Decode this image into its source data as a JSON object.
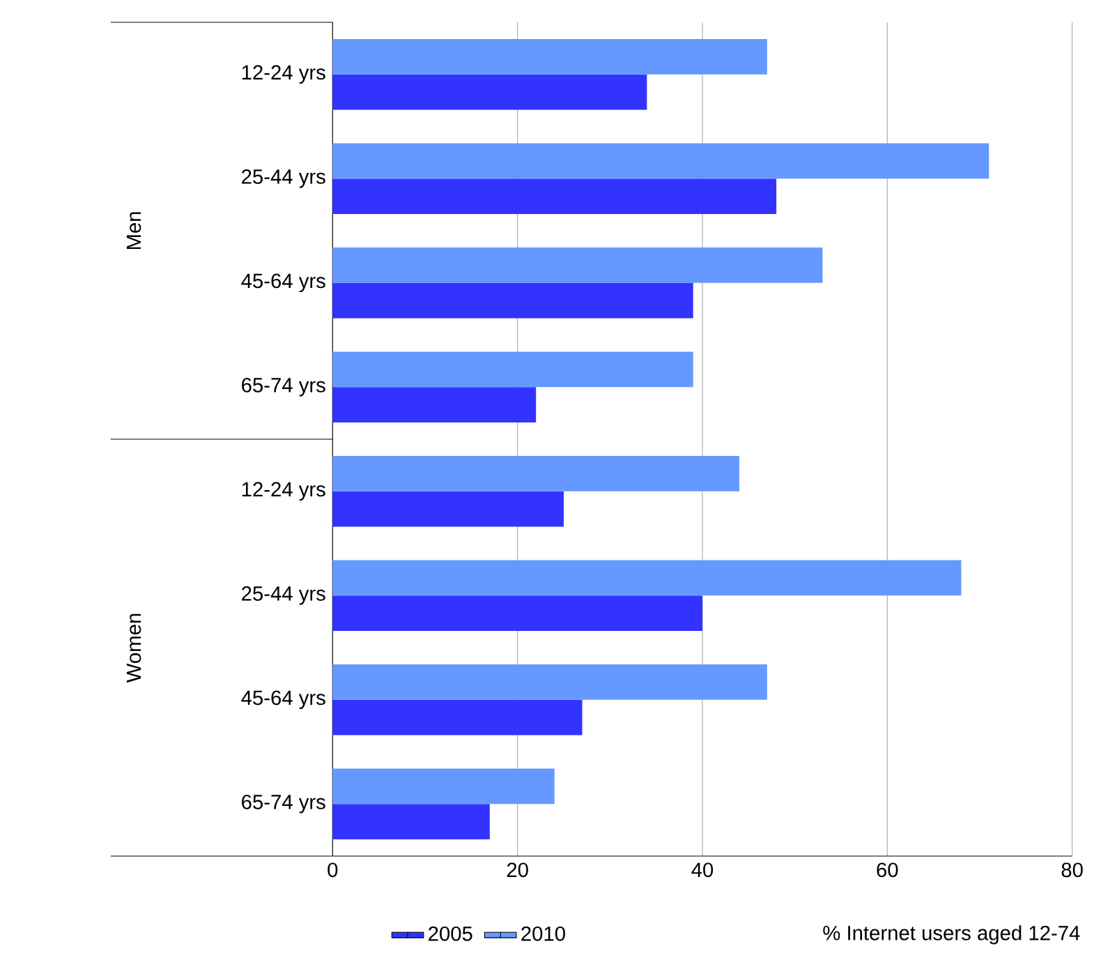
{
  "chart_data": {
    "type": "bar",
    "orientation": "horizontal",
    "categories": [
      "12-24 yrs",
      "25-44 yrs",
      "45-64 yrs",
      "65-74 yrs",
      "12-24 yrs",
      "25-44 yrs",
      "45-64 yrs",
      "65-74 yrs"
    ],
    "series": [
      {
        "name": "2005",
        "color": "#3333ff",
        "values": [
          34,
          48,
          39,
          22,
          25,
          40,
          27,
          17
        ]
      },
      {
        "name": "2010",
        "color": "#6699ff",
        "values": [
          47,
          71,
          53,
          39,
          44,
          68,
          47,
          24
        ]
      }
    ],
    "xlabel": "% Internet users aged 12-74",
    "xlim": [
      0,
      80
    ],
    "xticks": [
      0,
      20,
      40,
      60,
      80
    ],
    "grid": "x",
    "legend": "bottom",
    "annotations": [
      "Men",
      "Women"
    ]
  }
}
